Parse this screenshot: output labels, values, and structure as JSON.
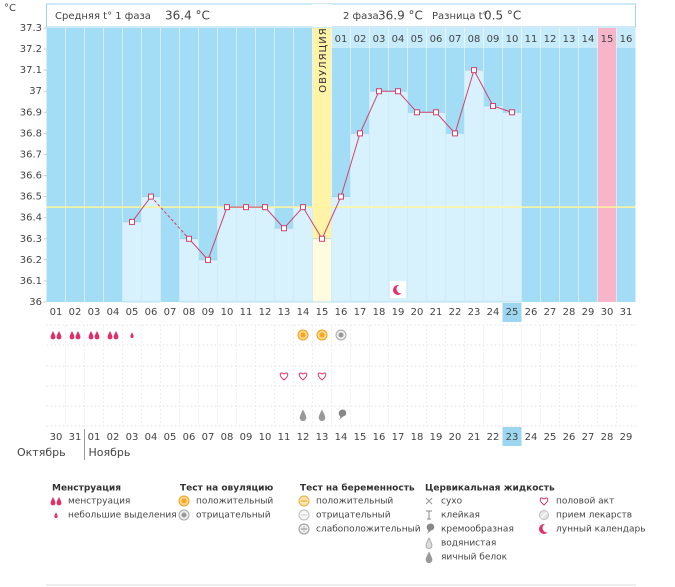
{
  "chart_data": {
    "type": "line",
    "y_unit": "°C",
    "header": {
      "phase1_label": "Средняя t° 1 фаза",
      "phase1_value": "36.4 °C",
      "phase2_label": "2 фаза",
      "phase2_value": "36.9 °C",
      "diff_label": "Разница t°",
      "diff_value": "0.5 °C"
    },
    "ovulation_label": "ОВУЛЯЦИЯ",
    "ovulation_day": "15",
    "today": "25",
    "marked_luteal_day": "15",
    "categories": [
      "01",
      "02",
      "03",
      "04",
      "05",
      "06",
      "07",
      "08",
      "09",
      "10",
      "11",
      "12",
      "13",
      "14",
      "15",
      "16",
      "17",
      "18",
      "19",
      "20",
      "21",
      "22",
      "23",
      "24",
      "25",
      "26",
      "27",
      "28",
      "29",
      "30",
      "31"
    ],
    "values": [
      null,
      null,
      null,
      null,
      36.38,
      36.5,
      null,
      36.3,
      36.2,
      36.45,
      36.45,
      36.45,
      36.35,
      36.45,
      36.3,
      36.5,
      36.8,
      37.0,
      37.0,
      36.9,
      36.9,
      36.8,
      37.1,
      36.93,
      36.9,
      null,
      null,
      null,
      null,
      null,
      null
    ],
    "coverline": 36.45,
    "ylim": [
      36,
      37.3
    ],
    "yticks": [
      36,
      36.1,
      36.2,
      36.3,
      36.4,
      36.5,
      36.6,
      36.7,
      36.8,
      36.9,
      37,
      37.1,
      37.2,
      37.3
    ],
    "grid": false,
    "luteal_days": [
      "01",
      "02",
      "03",
      "04",
      "05",
      "06",
      "07",
      "08",
      "09",
      "10",
      "11",
      "12",
      "13",
      "14",
      "15",
      "16"
    ],
    "dates": [
      {
        "label": "30",
        "weekend": true
      },
      {
        "label": "31",
        "weekend": false
      },
      {
        "label": "01",
        "weekend": false
      },
      {
        "label": "02",
        "weekend": false
      },
      {
        "label": "03",
        "weekend": false
      },
      {
        "label": "04",
        "weekend": false
      },
      {
        "label": "05",
        "weekend": true
      },
      {
        "label": "06",
        "weekend": true
      },
      {
        "label": "07",
        "weekend": false
      },
      {
        "label": "08",
        "weekend": false
      },
      {
        "label": "09",
        "weekend": false
      },
      {
        "label": "10",
        "weekend": false
      },
      {
        "label": "11",
        "weekend": false
      },
      {
        "label": "12",
        "weekend": true
      },
      {
        "label": "13",
        "weekend": true
      },
      {
        "label": "14",
        "weekend": false
      },
      {
        "label": "15",
        "weekend": false
      },
      {
        "label": "16",
        "weekend": false
      },
      {
        "label": "17",
        "weekend": false
      },
      {
        "label": "18",
        "weekend": false
      },
      {
        "label": "19",
        "weekend": true
      },
      {
        "label": "20",
        "weekend": true
      },
      {
        "label": "21",
        "weekend": false
      },
      {
        "label": "22",
        "weekend": false
      },
      {
        "label": "23",
        "weekend": false
      },
      {
        "label": "24",
        "weekend": false
      },
      {
        "label": "25",
        "weekend": false
      },
      {
        "label": "26",
        "weekend": true
      },
      {
        "label": "27",
        "weekend": true
      },
      {
        "label": "28",
        "weekend": false
      },
      {
        "label": "29",
        "weekend": false
      }
    ],
    "months": [
      "Октябрь",
      "Ноябрь"
    ],
    "symbols": [
      {
        "day": "01",
        "kind": "heavy"
      },
      {
        "day": "02",
        "kind": "heavy"
      },
      {
        "day": "03",
        "kind": "heavy"
      },
      {
        "day": "04",
        "kind": "heavy"
      },
      {
        "day": "05",
        "kind": "light"
      },
      {
        "day": "14",
        "kind": "ovu-pos"
      },
      {
        "day": "15",
        "kind": "ovu-pos"
      },
      {
        "day": "16",
        "kind": "ovu-neg"
      },
      {
        "day": "13",
        "kind": "heart"
      },
      {
        "day": "14",
        "kind": "heart"
      },
      {
        "day": "15",
        "kind": "heart"
      },
      {
        "day": "14",
        "kind": "eggwhite"
      },
      {
        "day": "15",
        "kind": "eggwhite"
      },
      {
        "day": "16",
        "kind": "creamy"
      },
      {
        "day": "19",
        "kind": "moon"
      }
    ],
    "legend": [
      {
        "title": "Менструация",
        "items": [
          {
            "kind": "heavy",
            "label": "менструация"
          },
          {
            "kind": "light",
            "label": "небольшие выделения"
          }
        ]
      },
      {
        "title": "Тест на овуляцию",
        "items": [
          {
            "kind": "ovu-pos",
            "label": "положительный"
          },
          {
            "kind": "ovu-neg",
            "label": "отрицательный"
          }
        ]
      },
      {
        "title": "Тест на беременность",
        "items": [
          {
            "kind": "preg-pos",
            "label": "положительный"
          },
          {
            "kind": "preg-neg",
            "label": "отрицательный"
          },
          {
            "kind": "preg-weak",
            "label": "слабоположительный"
          }
        ]
      },
      {
        "title": "Цервикальная жидкость",
        "items": [
          {
            "kind": "dry",
            "label": "сухо"
          },
          {
            "kind": "sticky",
            "label": "клейкая"
          },
          {
            "kind": "creamy",
            "label": "кремообразная"
          },
          {
            "kind": "watery",
            "label": "водянистая"
          },
          {
            "kind": "eggwhite",
            "label": "яичный белок"
          }
        ]
      },
      {
        "items": [
          {
            "kind": "heart",
            "label": "половой акт"
          },
          {
            "kind": "pill",
            "label": "прием лекарств"
          },
          {
            "kind": "moon",
            "label": "лунный календарь"
          }
        ]
      }
    ]
  }
}
